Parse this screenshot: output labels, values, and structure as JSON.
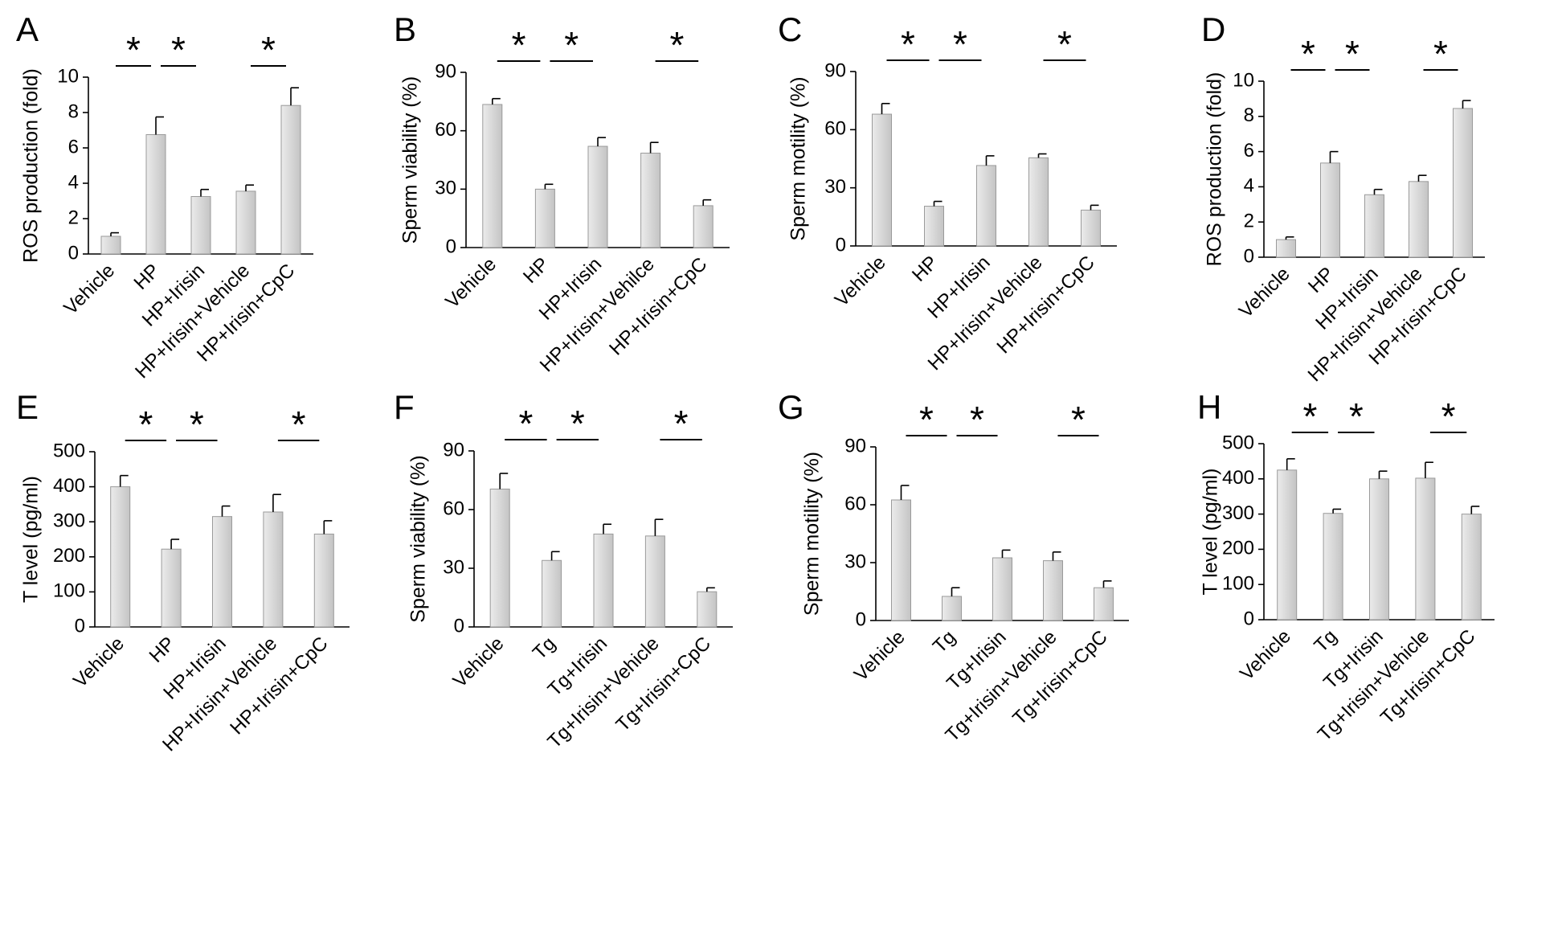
{
  "figure": {
    "description_note": "",
    "bar_gradient": [
      "#ebebeb",
      "#c4c4c4"
    ],
    "bar_stroke": "#9a9a9a",
    "axis_color": "#000000"
  },
  "chart_data": [
    {
      "panel": "A",
      "type": "bar",
      "ylabel": "ROS production (fold)",
      "categories": [
        "Vehicle",
        "HP",
        "HP+Irisin",
        "HP+Irisin+Vehicle",
        "HP+Irisin+CpC"
      ],
      "values": [
        1.0,
        6.75,
        3.25,
        3.55,
        8.4
      ],
      "errors": [
        0.2,
        1.0,
        0.4,
        0.35,
        1.0
      ],
      "ylim": [
        0,
        10
      ],
      "ticks": [
        0,
        2,
        4,
        6,
        8,
        10
      ],
      "significance": [
        {
          "from": 0,
          "to": 1,
          "label": "*"
        },
        {
          "from": 1,
          "to": 2,
          "label": "*"
        },
        {
          "from": 3,
          "to": 4,
          "label": "*"
        }
      ]
    },
    {
      "panel": "B",
      "type": "bar",
      "ylabel": "Sperm viability (%)",
      "categories": [
        "Vehicle",
        "HP",
        "HP+Irisin",
        "HP+Irisin+Vehilce",
        "HP+Irisin+CpC"
      ],
      "values": [
        73.5,
        30,
        52,
        48.5,
        21.5
      ],
      "errors": [
        3,
        2.5,
        4.5,
        5.5,
        3
      ],
      "ylim": [
        0,
        90
      ],
      "ticks": [
        0,
        30,
        60,
        90
      ],
      "significance": [
        {
          "from": 0,
          "to": 1,
          "label": "*"
        },
        {
          "from": 1,
          "to": 2,
          "label": "*"
        },
        {
          "from": 3,
          "to": 4,
          "label": "*"
        }
      ]
    },
    {
      "panel": "C",
      "type": "bar",
      "ylabel": "Sperm motility (%)",
      "categories": [
        "Vehicle",
        "HP",
        "HP+Irisin",
        "HP+Irisin+Vehicle",
        "HP+Irisin+CpC"
      ],
      "values": [
        68,
        20.5,
        41.5,
        45.5,
        18.5
      ],
      "errors": [
        5.5,
        2.5,
        5,
        2,
        2.5
      ],
      "ylim": [
        0,
        90
      ],
      "ticks": [
        0,
        30,
        60,
        90
      ],
      "significance": [
        {
          "from": 0,
          "to": 1,
          "label": "*"
        },
        {
          "from": 1,
          "to": 2,
          "label": "*"
        },
        {
          "from": 3,
          "to": 4,
          "label": "*"
        }
      ]
    },
    {
      "panel": "D",
      "type": "bar",
      "ylabel": "ROS production (fold)",
      "categories": [
        "Vehicle",
        "HP",
        "HP+Irisin",
        "HP+Irisin+Vehicle",
        "HP+Irisin+CpC"
      ],
      "values": [
        1.0,
        5.35,
        3.55,
        4.3,
        8.45
      ],
      "errors": [
        0.15,
        0.65,
        0.3,
        0.35,
        0.45
      ],
      "ylim": [
        0,
        10
      ],
      "ticks": [
        0,
        2,
        4,
        6,
        8,
        10
      ],
      "significance": [
        {
          "from": 0,
          "to": 1,
          "label": "*"
        },
        {
          "from": 1,
          "to": 2,
          "label": "*"
        },
        {
          "from": 3,
          "to": 4,
          "label": "*"
        }
      ]
    },
    {
      "panel": "E",
      "type": "bar",
      "ylabel": "T level (pg/ml)",
      "categories": [
        "Vehicle",
        "HP",
        "HP+Irisin",
        "HP+Irisin+Vehicle",
        "HP+Irisin+CpC"
      ],
      "values": [
        400,
        222,
        315,
        328,
        265
      ],
      "errors": [
        32,
        28,
        30,
        50,
        38
      ],
      "ylim": [
        0,
        500
      ],
      "ticks": [
        0,
        100,
        200,
        300,
        400,
        500
      ],
      "significance": [
        {
          "from": 0,
          "to": 1,
          "label": "*"
        },
        {
          "from": 1,
          "to": 2,
          "label": "*"
        },
        {
          "from": 3,
          "to": 4,
          "label": "*"
        }
      ]
    },
    {
      "panel": "F",
      "type": "bar",
      "ylabel": "Sperm viability (%)",
      "categories": [
        "Vehicle",
        "Tg",
        "Tg+Irisin",
        "Tg+Irisin+Vehicle",
        "Tg+Irisin+CpC"
      ],
      "values": [
        70.5,
        34,
        47.5,
        46.5,
        18
      ],
      "errors": [
        8,
        4.5,
        5,
        8.5,
        2
      ],
      "ylim": [
        0,
        90
      ],
      "ticks": [
        0,
        30,
        60,
        90
      ],
      "significance": [
        {
          "from": 0,
          "to": 1,
          "label": "*"
        },
        {
          "from": 1,
          "to": 2,
          "label": "*"
        },
        {
          "from": 3,
          "to": 4,
          "label": "*"
        }
      ]
    },
    {
      "panel": "G",
      "type": "bar",
      "ylabel": "Sperm motility (%)",
      "categories": [
        "Vehicle",
        "Tg",
        "Tg+Irisin",
        "Tg+Irisin+Vehicle",
        "Tg+Irisin+CpC"
      ],
      "values": [
        62.5,
        12.5,
        32.5,
        31,
        17
      ],
      "errors": [
        7.5,
        4.5,
        4,
        4.5,
        3.5
      ],
      "ylim": [
        0,
        90
      ],
      "ticks": [
        0,
        30,
        60,
        90
      ],
      "significance": [
        {
          "from": 0,
          "to": 1,
          "label": "*"
        },
        {
          "from": 1,
          "to": 2,
          "label": "*"
        },
        {
          "from": 3,
          "to": 4,
          "label": "*"
        }
      ]
    },
    {
      "panel": "H",
      "type": "bar",
      "ylabel": "T level (pg/ml)",
      "categories": [
        "Vehicle",
        "Tg",
        "Tg+Irisin",
        "Tg+Irisin+Vehicle",
        "Tg+Irisin+CpC"
      ],
      "values": [
        425,
        302,
        400,
        402,
        300
      ],
      "errors": [
        32,
        12,
        22,
        45,
        22
      ],
      "ylim": [
        0,
        500
      ],
      "ticks": [
        0,
        100,
        200,
        300,
        400,
        500
      ],
      "significance": [
        {
          "from": 0,
          "to": 1,
          "label": "*"
        },
        {
          "from": 1,
          "to": 2,
          "label": "*"
        },
        {
          "from": 3,
          "to": 4,
          "label": "*"
        }
      ]
    }
  ]
}
